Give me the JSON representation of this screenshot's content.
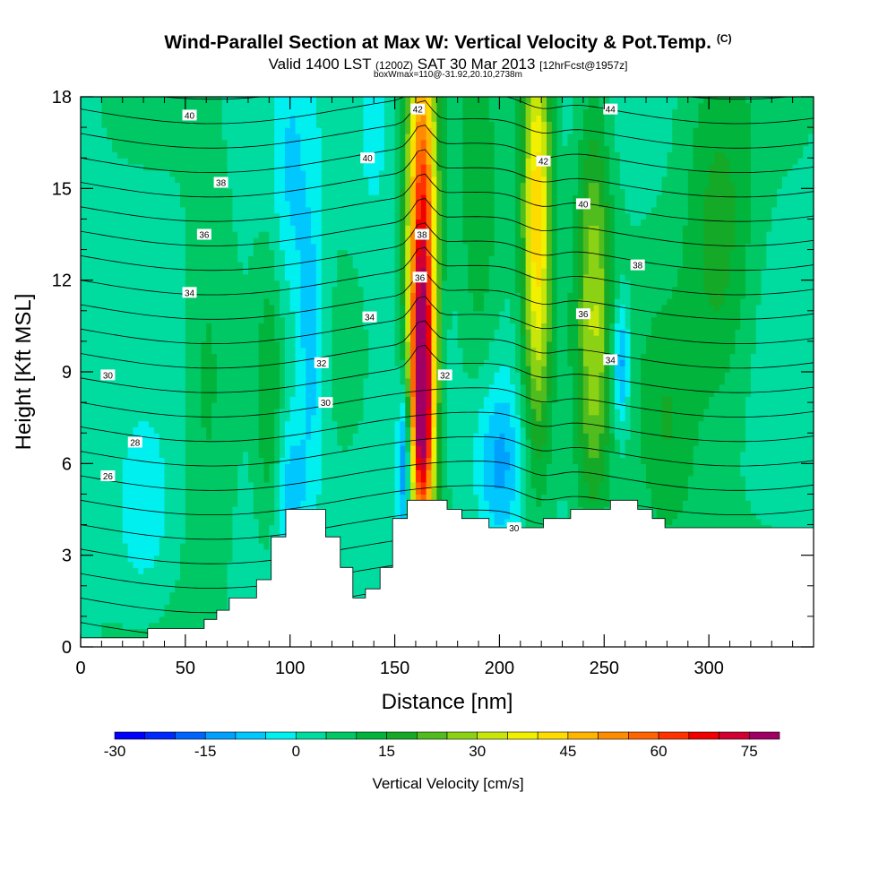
{
  "title": {
    "main": "Wind-Parallel Section at Max W: Vertical Velocity & Pot.Temp.",
    "main_unit": "(C)",
    "sub_prefix": "Valid 1400 LST",
    "sub_utc": "(1200Z)",
    "sub_date": "SAT 30 Mar 2013",
    "sub_fcst": "[12hrFcst@1957z]",
    "box_info": "boxWmax=110@-31.92,20.10,2738m"
  },
  "chart_data": {
    "type": "heatmap",
    "xlabel": "Distance [nm]",
    "ylabel": "Height [Kft MSL]",
    "xlim": [
      0,
      350
    ],
    "ylim": [
      0,
      18
    ],
    "x_ticks": [
      "0",
      "50",
      "100",
      "150",
      "200",
      "250",
      "300"
    ],
    "y_ticks": [
      "0",
      "3",
      "6",
      "9",
      "12",
      "15",
      "18"
    ],
    "colorbar": {
      "title": "Vertical Velocity [cm/s]",
      "min": -30,
      "max": 80,
      "step": 5,
      "tick_labels": [
        "-30",
        "-15",
        "0",
        "15",
        "30",
        "45",
        "60",
        "75"
      ],
      "colors": [
        "#0000ff",
        "#0028ff",
        "#0064ff",
        "#00a0ff",
        "#00c8ff",
        "#00f0f0",
        "#00dca0",
        "#00c864",
        "#00b43c",
        "#14aa28",
        "#50bc1e",
        "#8cd214",
        "#c8e60a",
        "#f0f000",
        "#ffdc00",
        "#ffb400",
        "#ff8c00",
        "#ff6400",
        "#ff3200",
        "#f00000",
        "#d20032",
        "#a00064"
      ]
    },
    "w_features": [
      {
        "x": 163,
        "z": 12,
        "w": 68,
        "sx": 5,
        "sz": 6
      },
      {
        "x": 163,
        "z": 7.5,
        "w": 35,
        "sx": 4,
        "sz": 2.5
      },
      {
        "x": 218,
        "z": 14,
        "w": 40,
        "sx": 5,
        "sz": 5
      },
      {
        "x": 245,
        "z": 11,
        "w": 24,
        "sx": 6,
        "sz": 5
      },
      {
        "x": 155,
        "z": 6,
        "w": -28,
        "sx": 2.5,
        "sz": 2
      },
      {
        "x": 110,
        "z": 10,
        "w": -14,
        "sx": 5,
        "sz": 3.5
      },
      {
        "x": 258,
        "z": 9.3,
        "w": -20,
        "sx": 3,
        "sz": 1.5
      },
      {
        "x": 200,
        "z": 6,
        "w": -16,
        "sx": 8,
        "sz": 2
      },
      {
        "x": 100,
        "z": 5,
        "w": -12,
        "sx": 5,
        "sz": 2
      },
      {
        "x": 100,
        "z": 15,
        "w": -9,
        "sx": 6,
        "sz": 3
      },
      {
        "x": 140,
        "z": 17,
        "w": -8,
        "sx": 4,
        "sz": 2
      },
      {
        "x": 305,
        "z": 13,
        "w": 14,
        "sx": 12,
        "sz": 4
      },
      {
        "x": 280,
        "z": 7,
        "w": 10,
        "sx": 10,
        "sz": 3
      },
      {
        "x": 90,
        "z": 8,
        "w": 10,
        "sx": 4,
        "sz": 3
      },
      {
        "x": 60,
        "z": 9,
        "w": 8,
        "sx": 8,
        "sz": 4
      },
      {
        "x": 190,
        "z": 13,
        "w": 10,
        "sx": 8,
        "sz": 4
      },
      {
        "x": 30,
        "z": 4,
        "w": -8,
        "sx": 10,
        "sz": 2
      }
    ],
    "theta_contours": {
      "labeled": [
        {
          "label": "40",
          "x": 52,
          "z": 17.4
        },
        {
          "label": "38",
          "x": 67,
          "z": 15.2
        },
        {
          "label": "36",
          "x": 59,
          "z": 13.5
        },
        {
          "label": "34",
          "x": 52,
          "z": 11.6
        },
        {
          "label": "30",
          "x": 13,
          "z": 8.9
        },
        {
          "label": "28",
          "x": 26,
          "z": 6.7
        },
        {
          "label": "26",
          "x": 13,
          "z": 5.6
        },
        {
          "label": "40",
          "x": 137,
          "z": 16.0
        },
        {
          "label": "34",
          "x": 138,
          "z": 10.8
        },
        {
          "label": "32",
          "x": 115,
          "z": 9.3
        },
        {
          "label": "30",
          "x": 117,
          "z": 8.0
        },
        {
          "label": "42",
          "x": 161,
          "z": 17.6
        },
        {
          "label": "38",
          "x": 163,
          "z": 13.5
        },
        {
          "label": "36",
          "x": 162,
          "z": 12.1
        },
        {
          "label": "32",
          "x": 174,
          "z": 8.9
        },
        {
          "label": "42",
          "x": 221,
          "z": 15.9
        },
        {
          "label": "40",
          "x": 240,
          "z": 14.5
        },
        {
          "label": "44",
          "x": 253,
          "z": 17.6
        },
        {
          "label": "38",
          "x": 266,
          "z": 12.5
        },
        {
          "label": "36",
          "x": 240,
          "z": 10.9
        },
        {
          "label": "34",
          "x": 253,
          "z": 9.4
        },
        {
          "label": "30",
          "x": 207,
          "z": 3.9
        }
      ]
    },
    "terrain": [
      [
        0,
        0.3
      ],
      [
        32,
        0.3
      ],
      [
        32,
        0.6
      ],
      [
        59,
        0.6
      ],
      [
        59,
        0.9
      ],
      [
        65,
        0.9
      ],
      [
        65,
        1.2
      ],
      [
        71,
        1.2
      ],
      [
        71,
        1.6
      ],
      [
        84,
        1.6
      ],
      [
        84,
        2.2
      ],
      [
        91,
        2.2
      ],
      [
        91,
        3.6
      ],
      [
        98,
        3.6
      ],
      [
        98,
        4.5
      ],
      [
        117,
        4.5
      ],
      [
        117,
        3.6
      ],
      [
        124,
        3.6
      ],
      [
        124,
        2.6
      ],
      [
        130,
        2.6
      ],
      [
        130,
        1.6
      ],
      [
        136,
        1.6
      ],
      [
        136,
        1.9
      ],
      [
        143,
        1.9
      ],
      [
        143,
        2.6
      ],
      [
        149,
        2.6
      ],
      [
        149,
        4.2
      ],
      [
        156,
        4.2
      ],
      [
        156,
        4.8
      ],
      [
        175,
        4.8
      ],
      [
        175,
        4.5
      ],
      [
        182,
        4.5
      ],
      [
        182,
        4.2
      ],
      [
        195,
        4.2
      ],
      [
        195,
        3.9
      ],
      [
        221,
        3.9
      ],
      [
        221,
        4.2
      ],
      [
        234,
        4.2
      ],
      [
        234,
        4.5
      ],
      [
        253,
        4.5
      ],
      [
        253,
        4.8
      ],
      [
        266,
        4.8
      ],
      [
        266,
        4.5
      ],
      [
        273,
        4.5
      ],
      [
        273,
        4.2
      ],
      [
        279,
        4.2
      ],
      [
        279,
        3.9
      ],
      [
        350,
        3.9
      ]
    ]
  }
}
